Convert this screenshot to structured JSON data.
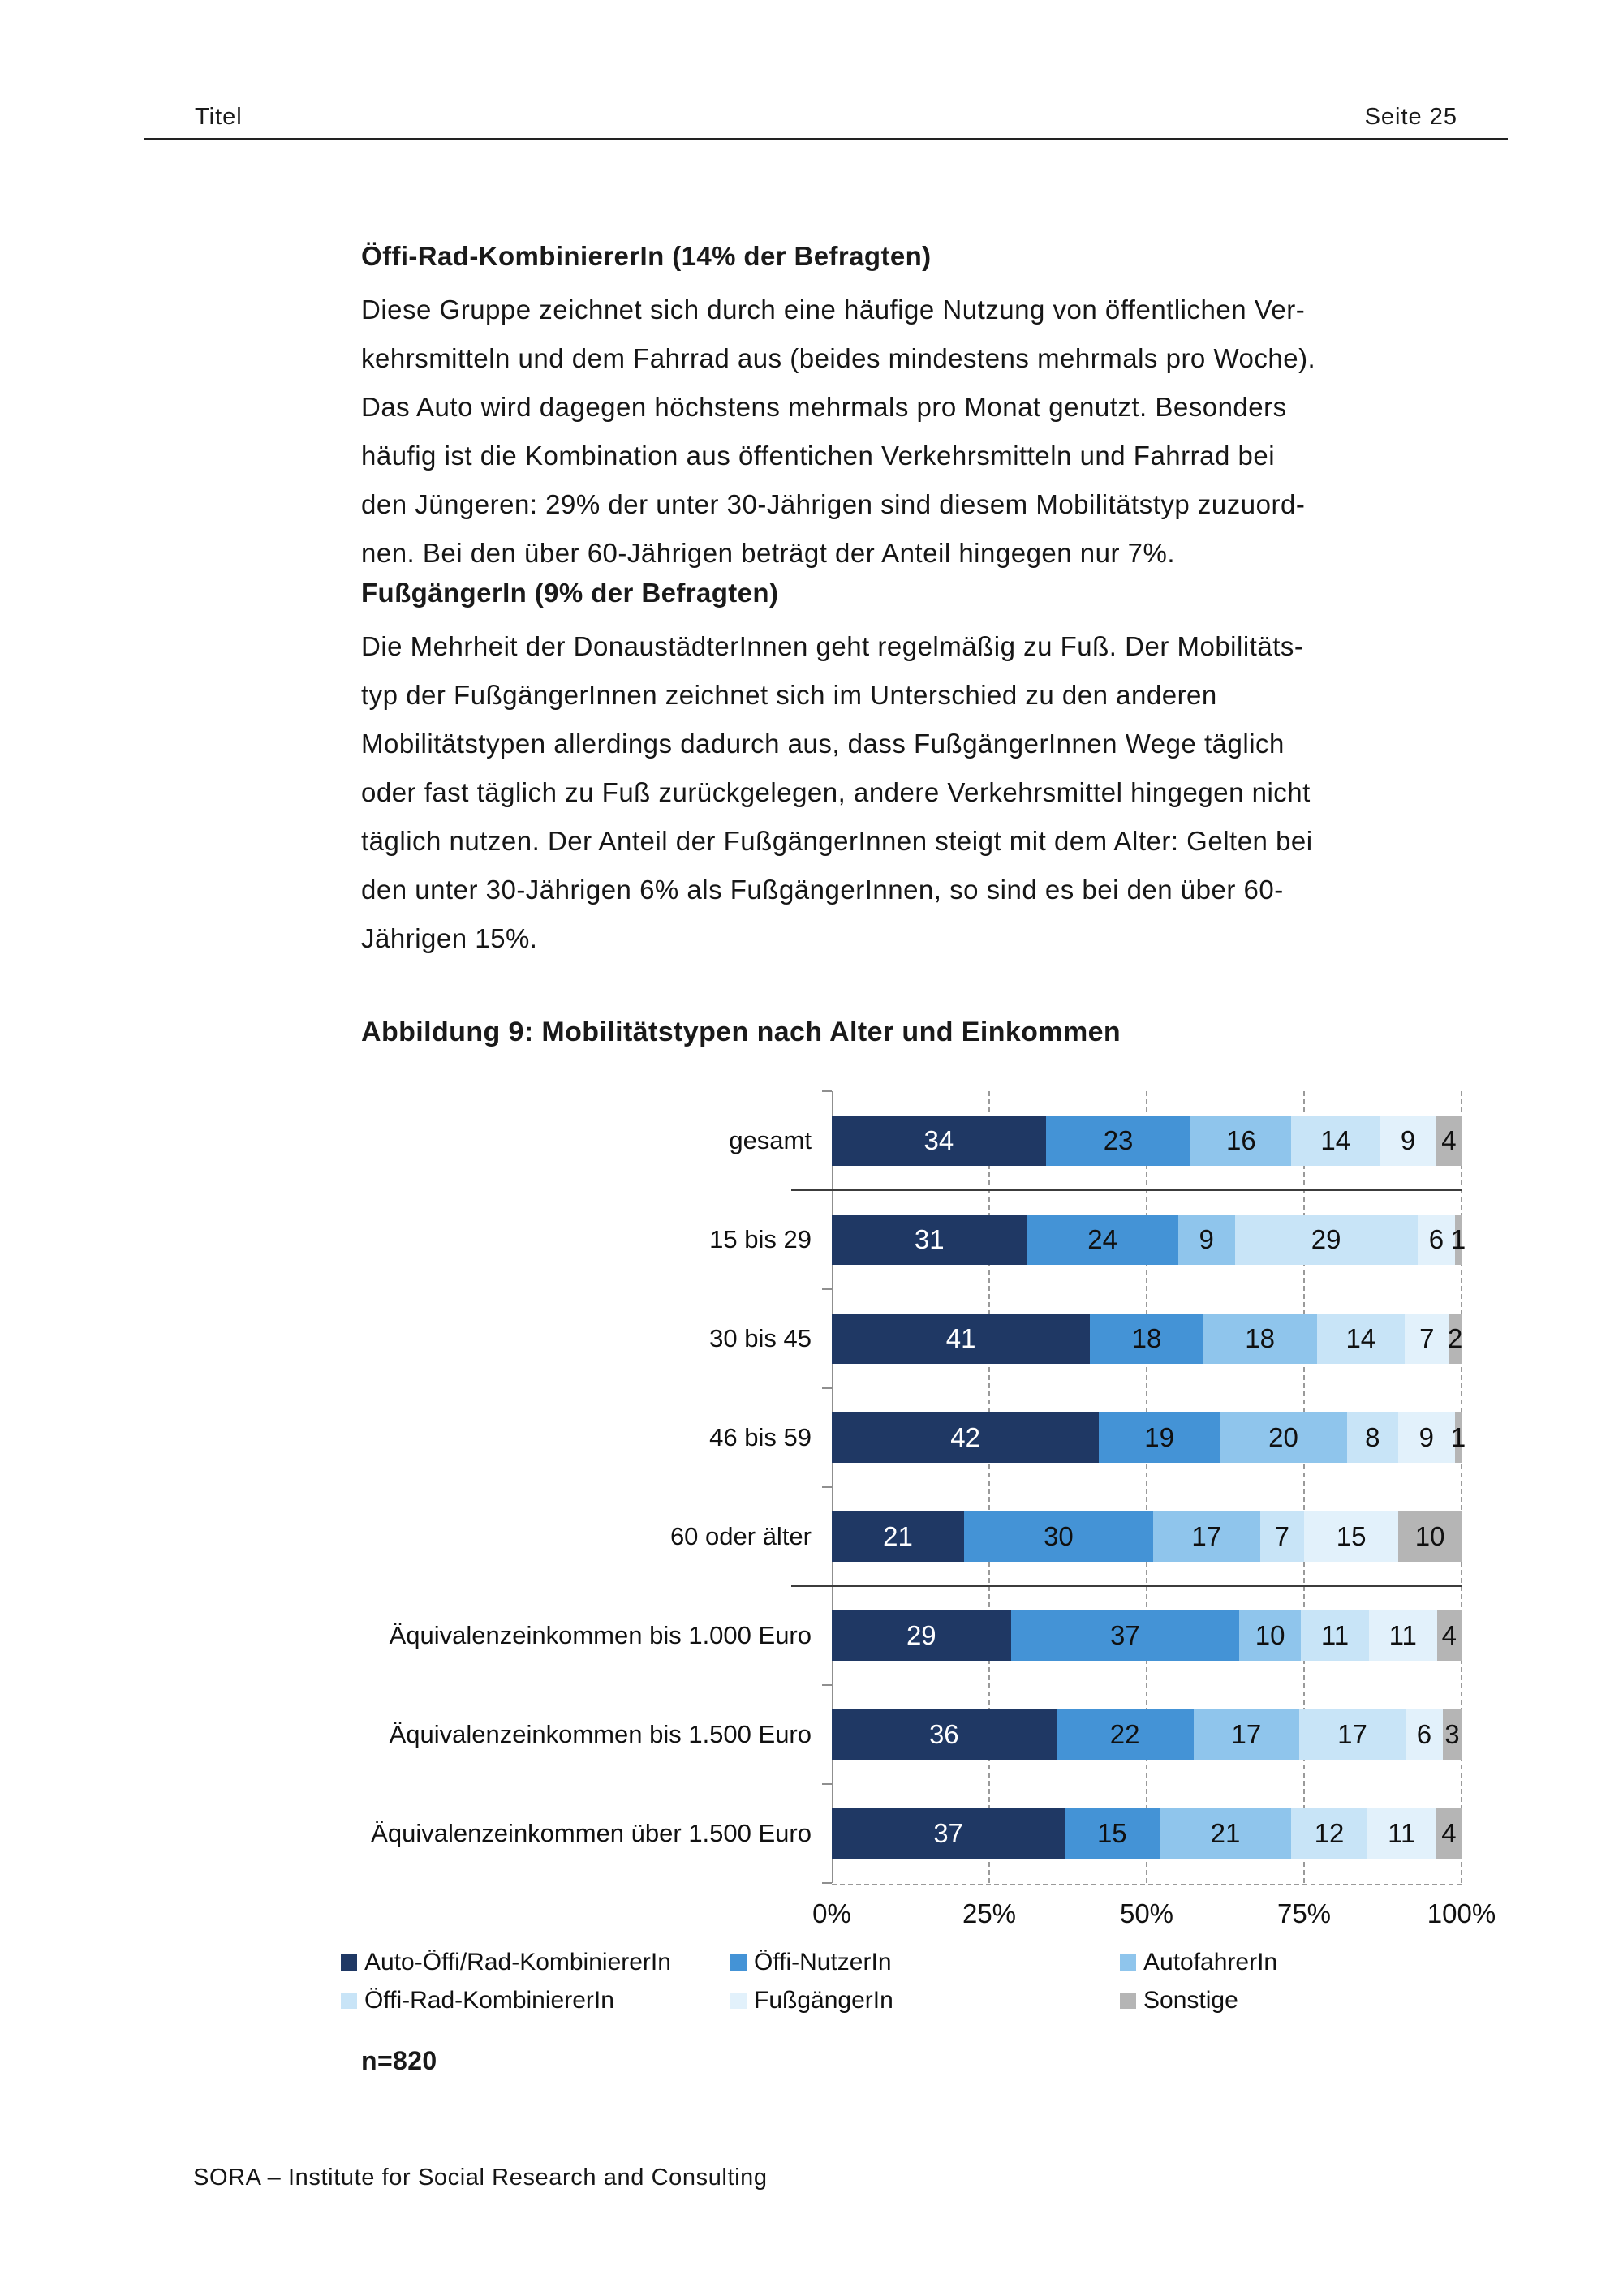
{
  "page": {
    "header": {
      "left": "Titel",
      "right": "Seite 25"
    },
    "sections": [
      {
        "heading": "Öffi-Rad-KombiniererIn (14% der Befragten)",
        "lines": [
          "Diese Gruppe zeichnet sich durch eine häufige Nutzung von öffentlichen Ver-",
          "kehrsmitteln und dem Fahrrad aus (beides mindestens mehrmals pro Woche).",
          "Das Auto wird dagegen höchstens mehrmals pro Monat genutzt. Besonders",
          "häufig ist die Kombination aus öffentichen Verkehrsmitteln und Fahrrad bei",
          "den Jüngeren: 29% der unter 30-Jährigen sind diesem Mobilitätstyp zuzuord-",
          "nen. Bei den über 60-Jährigen beträgt der Anteil hingegen nur 7%."
        ]
      },
      {
        "heading": "FußgängerIn (9% der Befragten)",
        "lines": [
          "Die Mehrheit der DonaustädterInnen geht regelmäßig zu Fuß. Der Mobilitäts-",
          "typ der FußgängerInnen zeichnet sich im Unterschied zu den anderen",
          "Mobilitätstypen allerdings dadurch aus, dass FußgängerInnen Wege täglich",
          "oder fast täglich zu Fuß zurückgelegen, andere Verkehrsmittel hingegen nicht",
          "täglich nutzen. Der Anteil der FußgängerInnen steigt mit dem Alter: Gelten bei",
          "den unter 30-Jährigen 6% als FußgängerInnen, so sind es bei den über 60-",
          "Jährigen 15%."
        ]
      }
    ],
    "figure_caption": "Abbildung 9: Mobilitätstypen nach Alter und Einkommen",
    "sample_note": "n=820",
    "footer": "SORA – Institute for Social Research and Consulting"
  },
  "chart_data": {
    "type": "bar",
    "orientation": "horizontal",
    "stacked": true,
    "title": "Abbildung 9: Mobilitätstypen nach Alter und Einkommen",
    "categories": [
      "gesamt",
      "15 bis 29",
      "30 bis 45",
      "46 bis 59",
      "60 oder älter",
      "Äquivalenzeinkommen bis 1.000 Euro",
      "Äquivalenzeinkommen bis 1.500 Euro",
      "Äquivalenzeinkommen über 1.500 Euro"
    ],
    "series": [
      {
        "name": "Auto-Öffi/Rad-KombiniererIn",
        "color": "#1F3864",
        "label_color": "#ffffff",
        "values": [
          34,
          31,
          41,
          42,
          21,
          29,
          36,
          37
        ]
      },
      {
        "name": "Öffi-NutzerIn",
        "color": "#4493D6",
        "label_color": "#101010",
        "values": [
          23,
          24,
          18,
          19,
          30,
          37,
          22,
          15
        ]
      },
      {
        "name": "AutofahrerIn",
        "color": "#8FC5EC",
        "label_color": "#101010",
        "values": [
          16,
          9,
          18,
          20,
          17,
          10,
          17,
          21
        ]
      },
      {
        "name": "Öffi-Rad-KombiniererIn",
        "color": "#C8E4F7",
        "label_color": "#101010",
        "values": [
          14,
          29,
          14,
          8,
          7,
          11,
          17,
          12
        ]
      },
      {
        "name": "FußgängerIn",
        "color": "#E2F1FB",
        "label_color": "#101010",
        "values": [
          9,
          6,
          7,
          9,
          15,
          11,
          6,
          11
        ]
      },
      {
        "name": "Sonstige",
        "color": "#B5B5B5",
        "label_color": "#101010",
        "values": [
          4,
          1,
          2,
          1,
          10,
          4,
          3,
          4
        ]
      }
    ],
    "x_ticks": [
      "0%",
      "25%",
      "50%",
      "75%",
      "100%"
    ],
    "xlim": [
      0,
      100
    ],
    "grid": "dashed-vertical",
    "separator_after_rows": [
      0,
      4
    ],
    "legend_position": "bottom",
    "legend_rows": [
      [
        0,
        1,
        2
      ],
      [
        3,
        4,
        5
      ]
    ],
    "note": "n=820"
  }
}
